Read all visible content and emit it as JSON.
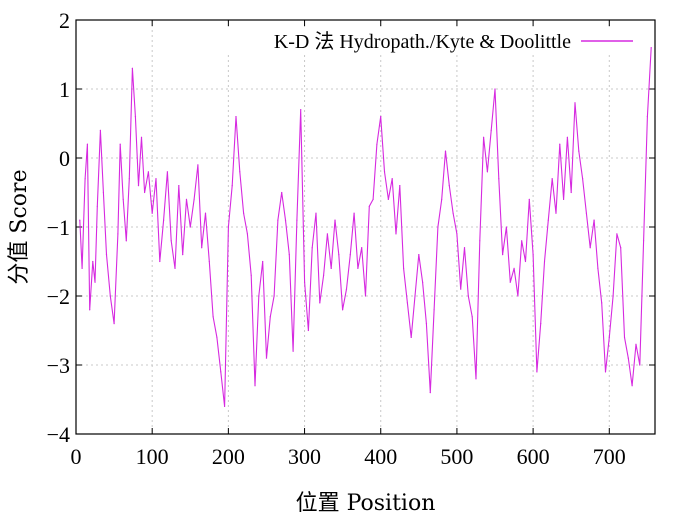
{
  "chart_data": {
    "type": "line",
    "title": "",
    "xlabel": "位置 Position",
    "ylabel": "分值 Score",
    "xlim": [
      0,
      760
    ],
    "ylim": [
      -4,
      2
    ],
    "xticks": [
      0,
      100,
      200,
      300,
      400,
      500,
      600,
      700
    ],
    "yticks": [
      -4,
      -3,
      -2,
      -1,
      0,
      1,
      2
    ],
    "xtick_labels": [
      "0",
      "100",
      "200",
      "300",
      "400",
      "500",
      "600",
      "700"
    ],
    "ytick_labels": [
      "−4",
      "−3",
      "−2",
      "−1",
      "0",
      "1",
      "2"
    ],
    "grid": true,
    "legend_position": "top-right",
    "series": [
      {
        "name": "K-D 法 Hydropath./Kyte & Doolittle",
        "color": "#d62ae0",
        "x": [
          5,
          8,
          12,
          15,
          18,
          22,
          25,
          28,
          32,
          36,
          40,
          45,
          50,
          55,
          58,
          62,
          66,
          70,
          74,
          78,
          82,
          86,
          90,
          95,
          100,
          105,
          110,
          115,
          120,
          125,
          130,
          135,
          140,
          145,
          150,
          155,
          160,
          165,
          170,
          175,
          180,
          185,
          190,
          195,
          200,
          205,
          210,
          215,
          220,
          225,
          230,
          235,
          240,
          245,
          250,
          255,
          260,
          265,
          270,
          275,
          280,
          285,
          290,
          295,
          300,
          305,
          310,
          315,
          320,
          325,
          330,
          335,
          340,
          345,
          350,
          355,
          360,
          365,
          370,
          375,
          380,
          385,
          390,
          395,
          400,
          405,
          410,
          415,
          420,
          425,
          430,
          435,
          440,
          445,
          450,
          455,
          460,
          465,
          470,
          475,
          480,
          485,
          490,
          495,
          500,
          505,
          510,
          515,
          520,
          525,
          530,
          535,
          540,
          545,
          550,
          555,
          560,
          565,
          570,
          575,
          580,
          585,
          590,
          595,
          600,
          605,
          610,
          615,
          620,
          625,
          630,
          635,
          640,
          645,
          650,
          655,
          660,
          665,
          670,
          675,
          680,
          685,
          690,
          695,
          700,
          705,
          710,
          715,
          720,
          725,
          730,
          735,
          740,
          745,
          750,
          755
        ],
        "values": [
          -0.9,
          -1.6,
          -0.3,
          0.2,
          -2.2,
          -1.5,
          -1.8,
          -0.7,
          0.4,
          -0.5,
          -1.4,
          -2.0,
          -2.4,
          -1.1,
          0.2,
          -0.6,
          -1.2,
          -0.3,
          1.3,
          0.6,
          -0.4,
          0.3,
          -0.5,
          -0.2,
          -0.8,
          -0.3,
          -1.5,
          -0.9,
          -0.2,
          -1.2,
          -1.6,
          -0.4,
          -1.4,
          -0.6,
          -1.0,
          -0.6,
          -0.1,
          -1.3,
          -0.8,
          -1.5,
          -2.3,
          -2.6,
          -3.1,
          -3.6,
          -1.0,
          -0.4,
          0.6,
          -0.2,
          -0.8,
          -1.1,
          -1.7,
          -3.3,
          -2.0,
          -1.5,
          -2.9,
          -2.3,
          -2.0,
          -0.9,
          -0.5,
          -0.9,
          -1.4,
          -2.8,
          -0.9,
          0.7,
          -1.8,
          -2.5,
          -1.3,
          -0.8,
          -2.1,
          -1.7,
          -1.1,
          -1.6,
          -0.9,
          -1.4,
          -2.2,
          -1.9,
          -1.4,
          -0.8,
          -1.6,
          -1.3,
          -2.0,
          -0.7,
          -0.6,
          0.2,
          0.6,
          -0.2,
          -0.6,
          -0.3,
          -1.1,
          -0.4,
          -1.6,
          -2.1,
          -2.6,
          -2.0,
          -1.4,
          -1.8,
          -2.4,
          -3.4,
          -2.2,
          -1.0,
          -0.6,
          0.1,
          -0.4,
          -0.8,
          -1.1,
          -1.9,
          -1.3,
          -2.0,
          -2.3,
          -3.2,
          -1.2,
          0.3,
          -0.2,
          0.4,
          1.0,
          -0.3,
          -1.4,
          -1.0,
          -1.8,
          -1.6,
          -2.0,
          -1.2,
          -1.5,
          -0.6,
          -1.4,
          -3.1,
          -2.4,
          -1.5,
          -0.9,
          -0.3,
          -0.8,
          0.2,
          -0.6,
          0.3,
          -0.5,
          0.8,
          0.1,
          -0.3,
          -0.8,
          -1.3,
          -0.9,
          -1.6,
          -2.1,
          -3.1,
          -2.6,
          -2.0,
          -1.1,
          -1.3,
          -2.6,
          -2.9,
          -3.3,
          -2.7,
          -3.0,
          -1.2,
          0.6,
          1.6
        ]
      }
    ]
  }
}
